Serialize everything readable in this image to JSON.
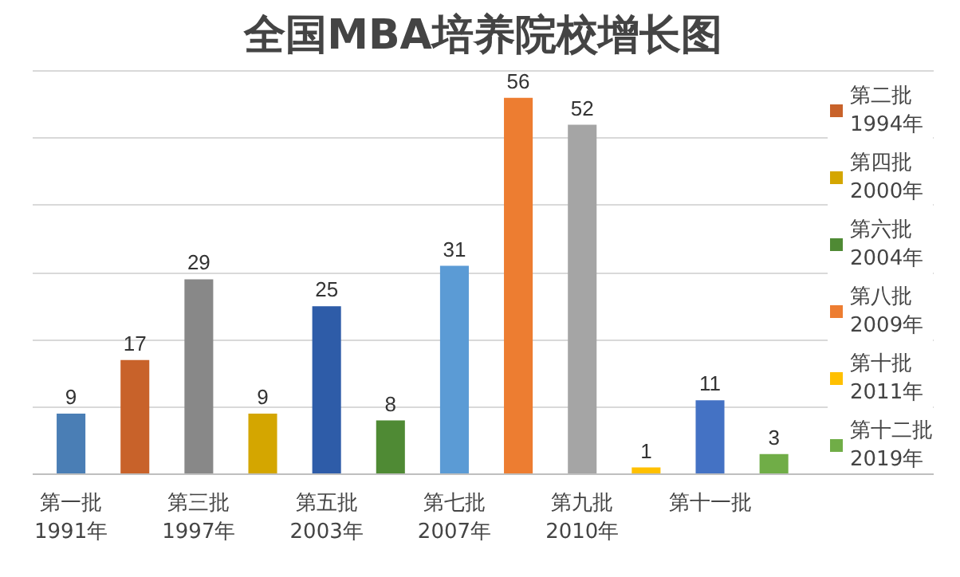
{
  "chart_data": {
    "type": "bar",
    "title": "全国MBA培养院校增长图",
    "categories": [
      "第一批\n1991年",
      null,
      "第三批\n1997年",
      null,
      "第五批\n2003年",
      null,
      "第七批\n2007年",
      null,
      "第九批\n2010年",
      null,
      "第十一批",
      null
    ],
    "series": [
      {
        "color": "#4a7eb5",
        "values": [
          9,
          null,
          null,
          null,
          null,
          null,
          null,
          null,
          null,
          null,
          null,
          null
        ]
      },
      {
        "name": "第二批\n1994年",
        "color": "#c8622a",
        "values": [
          null,
          17,
          null,
          null,
          null,
          null,
          null,
          null,
          null,
          null,
          null,
          null
        ]
      },
      {
        "color": "#888888",
        "values": [
          null,
          null,
          29,
          null,
          null,
          null,
          null,
          null,
          null,
          null,
          null,
          null
        ]
      },
      {
        "name": "第四批\n2000年",
        "color": "#d4a600",
        "values": [
          null,
          null,
          null,
          9,
          null,
          null,
          null,
          null,
          null,
          null,
          null,
          null
        ]
      },
      {
        "color": "#2e5ca8",
        "values": [
          null,
          null,
          null,
          null,
          25,
          null,
          null,
          null,
          null,
          null,
          null,
          null
        ]
      },
      {
        "name": "第六批\n2004年",
        "color": "#4f8a34",
        "values": [
          null,
          null,
          null,
          null,
          null,
          8,
          null,
          null,
          null,
          null,
          null,
          null
        ]
      },
      {
        "color": "#5b9bd5",
        "values": [
          null,
          null,
          null,
          null,
          null,
          null,
          31,
          null,
          null,
          null,
          null,
          null
        ]
      },
      {
        "name": "第八批\n2009年",
        "color": "#ed7d31",
        "values": [
          null,
          null,
          null,
          null,
          null,
          null,
          null,
          56,
          null,
          null,
          null,
          null
        ]
      },
      {
        "color": "#a5a5a5",
        "values": [
          null,
          null,
          null,
          null,
          null,
          null,
          null,
          null,
          52,
          null,
          null,
          null
        ]
      },
      {
        "name": "第十批\n2011年",
        "color": "#ffc000",
        "values": [
          null,
          null,
          null,
          null,
          null,
          null,
          null,
          null,
          null,
          1,
          null,
          null
        ]
      },
      {
        "color": "#4472c4",
        "values": [
          null,
          null,
          null,
          null,
          null,
          null,
          null,
          null,
          null,
          null,
          11,
          null
        ]
      },
      {
        "name": "第十二批\n2019年",
        "color": "#70ad47",
        "values": [
          null,
          null,
          null,
          null,
          null,
          null,
          null,
          null,
          null,
          null,
          null,
          3
        ]
      }
    ],
    "tick_labels": "x",
    "grid": "y",
    "legend": "right",
    "data_labels": true
  }
}
